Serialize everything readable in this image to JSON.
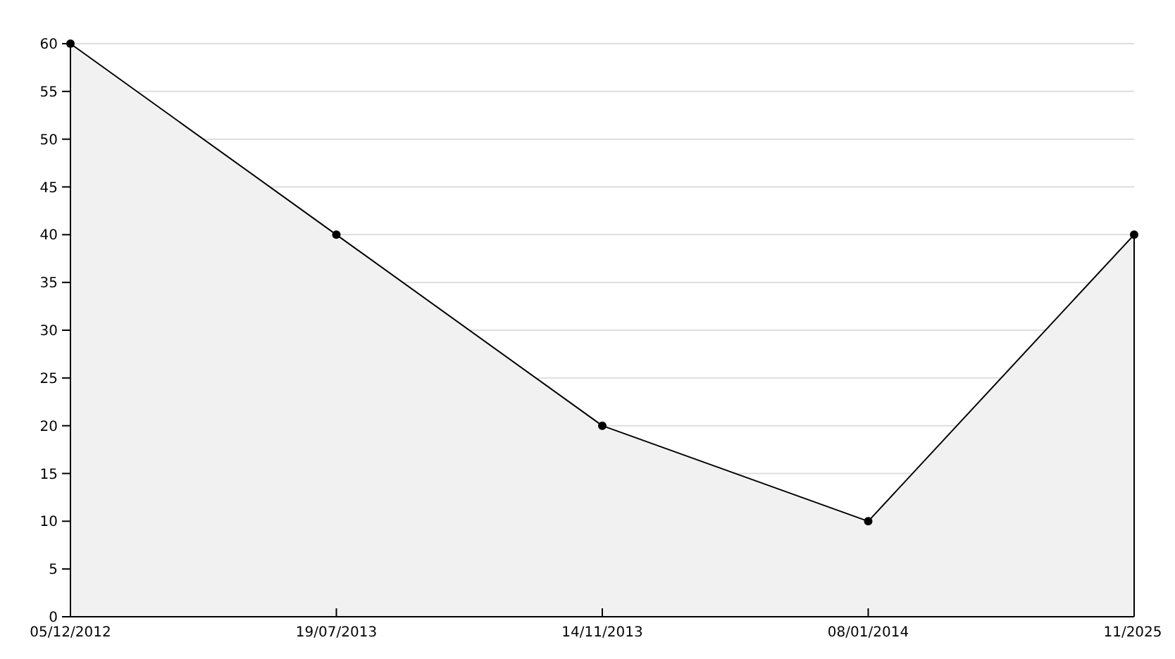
{
  "chart_data": {
    "type": "area",
    "categories": [
      "05/12/2012",
      "19/07/2013",
      "14/11/2013",
      "08/01/2014",
      "11/2025"
    ],
    "series": [
      {
        "color": "#000000",
        "values": [
          60,
          40,
          20,
          10,
          40
        ]
      }
    ],
    "ylim": [
      0,
      60
    ],
    "yticks": [
      0,
      5,
      10,
      15,
      20,
      25,
      30,
      35,
      40,
      45,
      50,
      55,
      60
    ],
    "grid": "y",
    "marker": "circle",
    "line_style": "solid"
  }
}
